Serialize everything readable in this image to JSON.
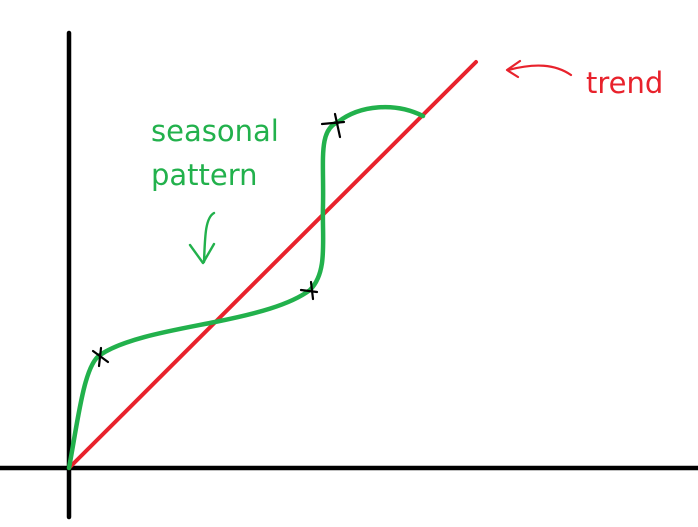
{
  "labels": {
    "trend": "trend",
    "seasonal_line1": "seasonal",
    "seasonal_line2": "pattern"
  },
  "colors": {
    "background": "#ffffff",
    "axes": "#000000",
    "trend": "#e8222c",
    "seasonal": "#22b14c",
    "markers": "#000000"
  },
  "icons": {
    "trend_pointer": "curved-arrow-left",
    "seasonal_pointer": "curved-arrow-down",
    "curve_markers": "x-mark"
  }
}
